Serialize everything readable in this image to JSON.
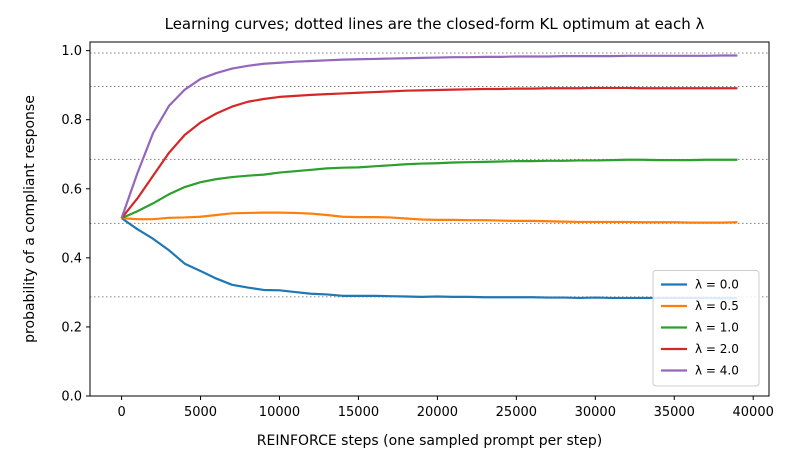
{
  "chart_data": {
    "type": "line",
    "title": "Learning curves; dotted lines are the closed-form KL optimum at each λ",
    "xlabel": "REINFORCE steps (one sampled prompt per step)",
    "ylabel": "probability of a compliant response",
    "xlim": [
      -2000,
      41000
    ],
    "ylim": [
      0.0,
      1.025
    ],
    "xticks": [
      0,
      5000,
      10000,
      15000,
      20000,
      25000,
      30000,
      35000,
      40000
    ],
    "yticks": [
      "0.0",
      "0.2",
      "0.4",
      "0.6",
      "0.8",
      "1.0"
    ],
    "grid": false,
    "legend_position": "lower-right",
    "reference_lines": [
      0.287,
      0.5,
      0.685,
      0.896,
      0.993
    ],
    "x": [
      0,
      1000,
      2000,
      3000,
      4000,
      5000,
      6000,
      7000,
      8000,
      9000,
      10000,
      11000,
      12000,
      13000,
      14000,
      15000,
      16000,
      17000,
      18000,
      19000,
      20000,
      21000,
      22000,
      23000,
      24000,
      25000,
      26000,
      27000,
      28000,
      29000,
      30000,
      31000,
      32000,
      33000,
      34000,
      35000,
      36000,
      37000,
      38000,
      39000
    ],
    "series": [
      {
        "name": "λ = 0.0",
        "color": "#1f77b4",
        "values": [
          0.515,
          0.483,
          0.455,
          0.422,
          0.383,
          0.362,
          0.34,
          0.322,
          0.314,
          0.307,
          0.306,
          0.301,
          0.296,
          0.294,
          0.29,
          0.29,
          0.29,
          0.289,
          0.288,
          0.287,
          0.288,
          0.287,
          0.287,
          0.286,
          0.286,
          0.286,
          0.286,
          0.285,
          0.285,
          0.284,
          0.285,
          0.284,
          0.284,
          0.284,
          0.284,
          0.284,
          0.284,
          0.284,
          0.283,
          0.283
        ]
      },
      {
        "name": "λ = 0.5",
        "color": "#ff7f0e",
        "values": [
          0.515,
          0.512,
          0.512,
          0.516,
          0.517,
          0.519,
          0.524,
          0.529,
          0.53,
          0.531,
          0.531,
          0.53,
          0.528,
          0.524,
          0.519,
          0.518,
          0.518,
          0.517,
          0.514,
          0.511,
          0.51,
          0.51,
          0.509,
          0.509,
          0.508,
          0.507,
          0.507,
          0.506,
          0.505,
          0.504,
          0.504,
          0.504,
          0.504,
          0.503,
          0.503,
          0.503,
          0.502,
          0.502,
          0.502,
          0.503
        ]
      },
      {
        "name": "λ = 1.0",
        "color": "#2ca02c",
        "values": [
          0.515,
          0.535,
          0.558,
          0.584,
          0.605,
          0.619,
          0.628,
          0.634,
          0.638,
          0.641,
          0.647,
          0.651,
          0.655,
          0.659,
          0.661,
          0.662,
          0.665,
          0.668,
          0.671,
          0.673,
          0.674,
          0.676,
          0.677,
          0.678,
          0.679,
          0.68,
          0.68,
          0.681,
          0.681,
          0.682,
          0.682,
          0.683,
          0.684,
          0.684,
          0.683,
          0.683,
          0.683,
          0.684,
          0.684,
          0.684
        ]
      },
      {
        "name": "λ = 2.0",
        "color": "#d62728",
        "values": [
          0.515,
          0.572,
          0.638,
          0.704,
          0.756,
          0.792,
          0.818,
          0.838,
          0.852,
          0.86,
          0.866,
          0.869,
          0.872,
          0.874,
          0.876,
          0.878,
          0.88,
          0.882,
          0.884,
          0.885,
          0.886,
          0.887,
          0.888,
          0.889,
          0.889,
          0.89,
          0.89,
          0.891,
          0.891,
          0.891,
          0.892,
          0.892,
          0.892,
          0.891,
          0.891,
          0.891,
          0.891,
          0.891,
          0.891,
          0.891
        ]
      },
      {
        "name": "λ = 4.0",
        "color": "#9467bd",
        "values": [
          0.515,
          0.645,
          0.762,
          0.84,
          0.887,
          0.918,
          0.935,
          0.948,
          0.956,
          0.962,
          0.965,
          0.968,
          0.97,
          0.972,
          0.974,
          0.975,
          0.976,
          0.977,
          0.978,
          0.979,
          0.98,
          0.981,
          0.981,
          0.982,
          0.982,
          0.983,
          0.983,
          0.983,
          0.984,
          0.984,
          0.984,
          0.984,
          0.985,
          0.985,
          0.985,
          0.985,
          0.985,
          0.985,
          0.986,
          0.986
        ]
      }
    ]
  }
}
